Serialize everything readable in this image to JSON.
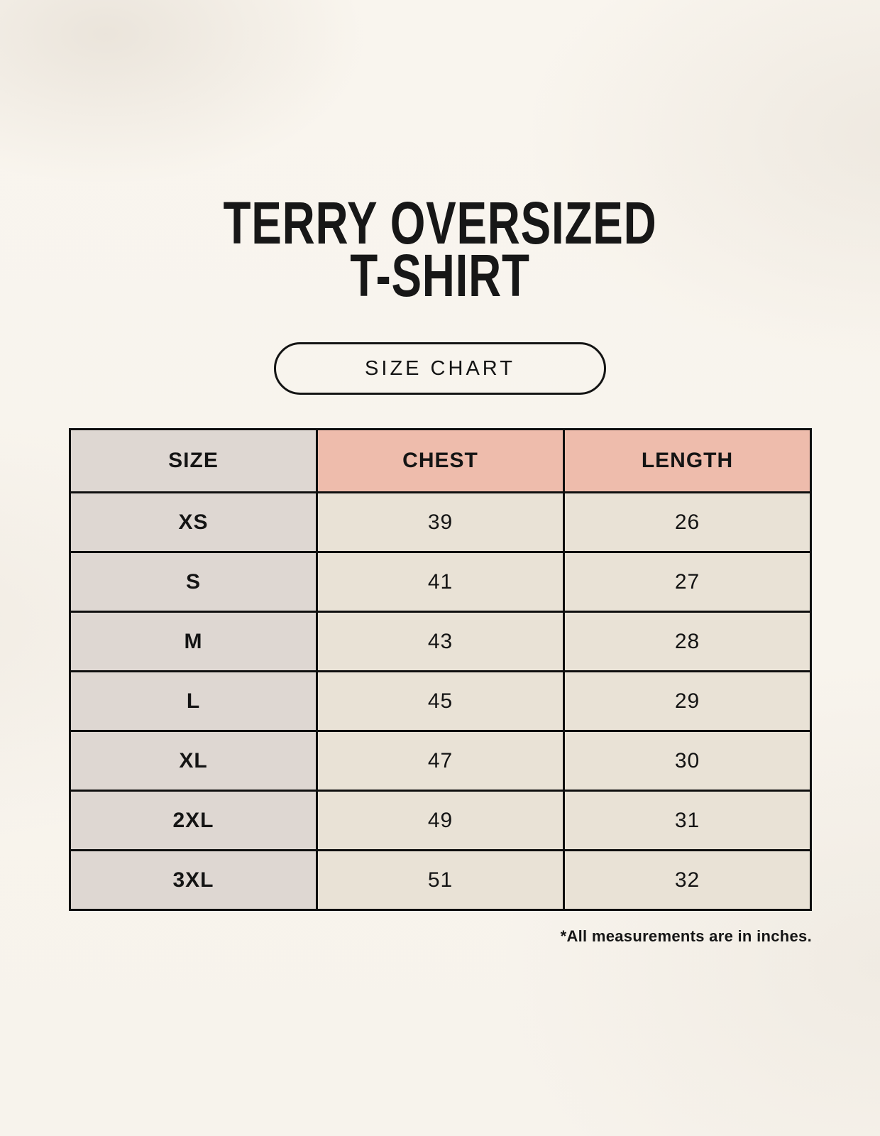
{
  "page": {
    "background_color": "#f8f4ed",
    "text_color": "#141414"
  },
  "title": {
    "line1": "TERRY OVERSIZED",
    "line2": "T-SHIRT"
  },
  "size_chart_button": {
    "label": "SIZE CHART"
  },
  "size_table": {
    "columns": [
      "SIZE",
      "CHEST",
      "LENGTH"
    ],
    "rows": [
      {
        "size": "XS",
        "chest": "39",
        "length": "26"
      },
      {
        "size": "S",
        "chest": "41",
        "length": "27"
      },
      {
        "size": "M",
        "chest": "43",
        "length": "28"
      },
      {
        "size": "L",
        "chest": "45",
        "length": "29"
      },
      {
        "size": "XL",
        "chest": "47",
        "length": "30"
      },
      {
        "size": "2XL",
        "chest": "49",
        "length": "31"
      },
      {
        "size": "3XL",
        "chest": "51",
        "length": "32"
      }
    ],
    "colors": {
      "size_column_bg": "#ded7d2",
      "measurement_header_bg": "#eebcac",
      "data_cell_bg": "#e9e2d6",
      "border": "#0f0f0f"
    }
  },
  "footnote": "*All measurements are in inches.",
  "chart_data": {
    "type": "table",
    "title": "TERRY OVERSIZED T-SHIRT",
    "columns": [
      "SIZE",
      "CHEST",
      "LENGTH"
    ],
    "rows": [
      [
        "XS",
        39,
        26
      ],
      [
        "S",
        41,
        27
      ],
      [
        "M",
        43,
        28
      ],
      [
        "L",
        45,
        29
      ],
      [
        "XL",
        47,
        30
      ],
      [
        "2XL",
        49,
        31
      ],
      [
        "3XL",
        51,
        32
      ]
    ],
    "note": "*All measurements are in inches.",
    "units": "inches"
  }
}
